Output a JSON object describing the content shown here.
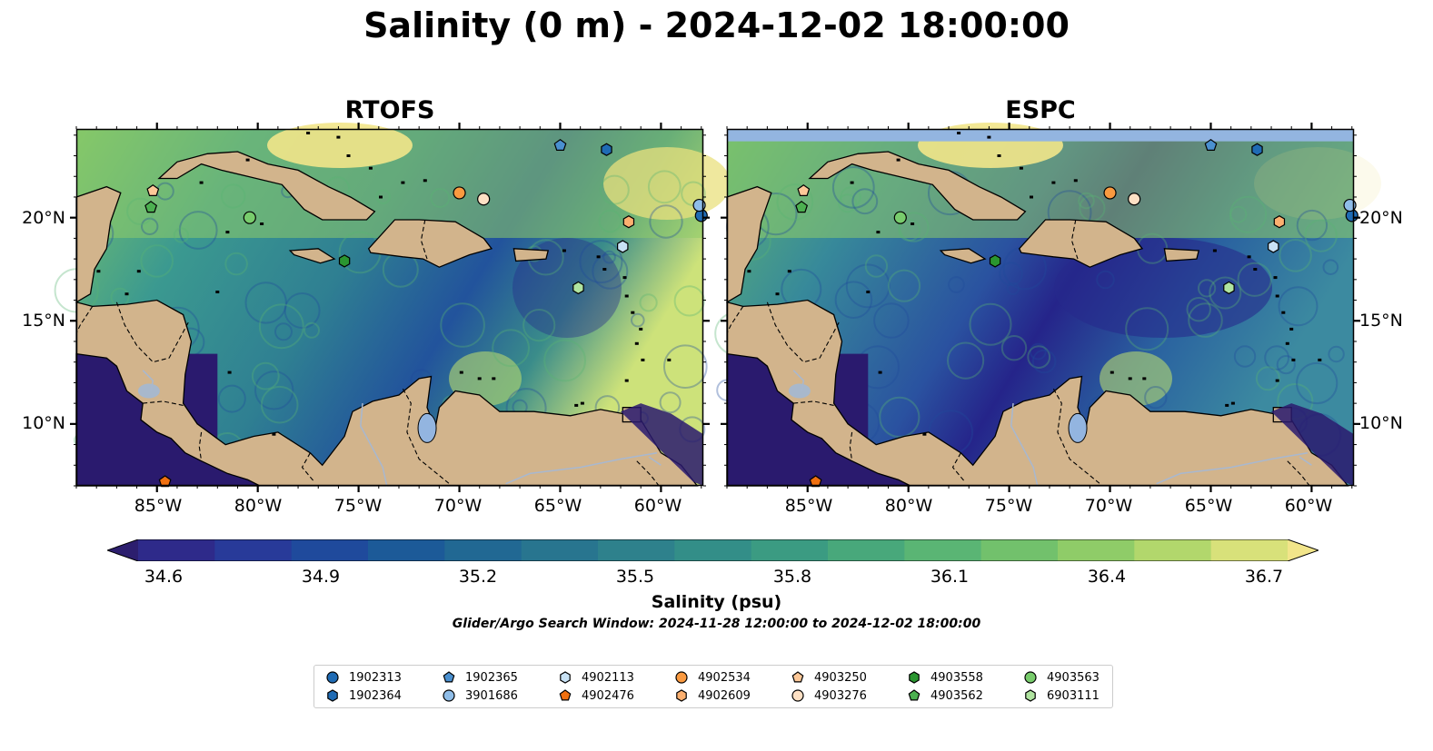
{
  "title": "Salinity (0 m) - 2024-12-02 18:00:00",
  "panels": [
    {
      "id": "rtofs",
      "title": "RTOFS"
    },
    {
      "id": "espc",
      "title": "ESPC"
    }
  ],
  "map": {
    "lon_range": [
      -89.0,
      -57.9
    ],
    "lat_range": [
      7.0,
      24.3
    ],
    "x_ticks": [
      "85°W",
      "80°W",
      "75°W",
      "70°W",
      "65°W",
      "60°W"
    ],
    "x_tick_values": [
      -85,
      -80,
      -75,
      -70,
      -65,
      -60
    ],
    "y_ticks": [
      "20°N",
      "15°N",
      "10°N"
    ],
    "y_tick_values": [
      20,
      15,
      10
    ],
    "land_color": "#d2b48c",
    "ocean_low_color": "#2a1a6e",
    "ocean_high_color": "#f2e58a",
    "espc_missing_band_color": "#93b5e0"
  },
  "colorbar": {
    "label": "Salinity (psu)",
    "ticks": [
      "34.6",
      "34.9",
      "35.2",
      "35.5",
      "35.8",
      "36.1",
      "36.4",
      "36.7"
    ],
    "min": 34.6,
    "max": 36.7,
    "colors": [
      "#2c1e6e",
      "#2e2a8a",
      "#283a99",
      "#1f4a9c",
      "#1c5a98",
      "#216893",
      "#28758f",
      "#2e818c",
      "#338e88",
      "#3b9b82",
      "#48a87b",
      "#5ab574",
      "#72c16c",
      "#8fcc68",
      "#b2d76c",
      "#d8e17a",
      "#f2e58a"
    ]
  },
  "search_window": "Glider/Argo Search Window: 2024-11-28 12:00:00 to 2024-12-02 18:00:00",
  "legend": [
    {
      "id": "1902313",
      "shape": "circle",
      "color": "#1f6bb4"
    },
    {
      "id": "1902364",
      "shape": "hexagon",
      "color": "#1f6bb4"
    },
    {
      "id": "1902365",
      "shape": "pentagon",
      "color": "#4a90d0"
    },
    {
      "id": "3901686",
      "shape": "circle",
      "color": "#8fbde8"
    },
    {
      "id": "4902113",
      "shape": "hexagon",
      "color": "#c8e2f5"
    },
    {
      "id": "4902476",
      "shape": "pentagon",
      "color": "#f07010"
    },
    {
      "id": "4902534",
      "shape": "circle",
      "color": "#fa9a40"
    },
    {
      "id": "4902609",
      "shape": "hexagon",
      "color": "#fcb070"
    },
    {
      "id": "4903250",
      "shape": "pentagon",
      "color": "#fdc898"
    },
    {
      "id": "4903276",
      "shape": "circle",
      "color": "#fde0c4"
    },
    {
      "id": "4903558",
      "shape": "hexagon",
      "color": "#2a9630"
    },
    {
      "id": "4903562",
      "shape": "pentagon",
      "color": "#4cb050"
    },
    {
      "id": "4903563",
      "shape": "circle",
      "color": "#78cc6c"
    },
    {
      "id": "6903111",
      "shape": "hexagon",
      "color": "#b0e4a0"
    }
  ],
  "floats": [
    {
      "id": "1902313",
      "lon": -58.0,
      "lat": 20.1
    },
    {
      "id": "1902364",
      "lon": -62.7,
      "lat": 23.3
    },
    {
      "id": "1902365",
      "lon": -65.0,
      "lat": 23.5
    },
    {
      "id": "3901686",
      "lon": -58.1,
      "lat": 20.6
    },
    {
      "id": "4902113",
      "lon": -61.9,
      "lat": 18.6
    },
    {
      "id": "4902476",
      "lon": -84.6,
      "lat": 7.2
    },
    {
      "id": "4902534",
      "lon": -70.0,
      "lat": 21.2
    },
    {
      "id": "4902609",
      "lon": -61.6,
      "lat": 19.8
    },
    {
      "id": "4903250",
      "lon": -85.2,
      "lat": 21.3
    },
    {
      "id": "4903276",
      "lon": -68.8,
      "lat": 20.9
    },
    {
      "id": "4903558",
      "lon": -75.7,
      "lat": 17.9
    },
    {
      "id": "4903562",
      "lon": -85.3,
      "lat": 20.5
    },
    {
      "id": "4903563",
      "lon": -80.4,
      "lat": 20.0
    },
    {
      "id": "6903111",
      "lon": -64.1,
      "lat": 16.6
    }
  ]
}
